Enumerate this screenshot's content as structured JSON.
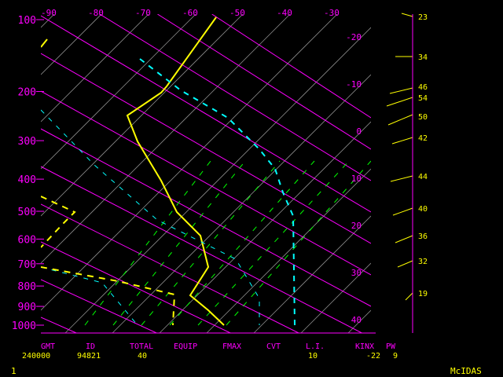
{
  "colors": {
    "background": "#000000",
    "grid": "#ff00ff",
    "isotherm": "#8c8c8c",
    "temperature": "#ffff00",
    "dewpoint": "#00ffff",
    "mixing_ratio": "#00ff00",
    "text_label": "#ff00ff",
    "text_value": "#ffff00"
  },
  "top_axis": [
    "-90",
    "-80",
    "-70",
    "-60",
    "-50",
    "-40",
    "-30"
  ],
  "left_axis": [
    "100",
    "200",
    "300",
    "400",
    "500",
    "600",
    "700",
    "800",
    "900",
    "1000"
  ],
  "right_isotherm_labels": [
    "-20",
    "-10",
    "0",
    "10",
    "20",
    "30",
    "40"
  ],
  "wind_speeds": [
    "23",
    "34",
    "46",
    "54",
    "50",
    "42",
    "44",
    "40",
    "36",
    "32",
    "19"
  ],
  "indices": {
    "headers": [
      "GMT",
      "ID",
      "TOTAL",
      "EQUIP",
      "FMAX",
      "CVT",
      "L.I.",
      "KINX",
      "PW"
    ],
    "values": [
      "240000",
      "94821",
      "40",
      "",
      "",
      "",
      "10",
      "-22",
      "9"
    ]
  },
  "footer": {
    "frame": "1",
    "brand": "McIDAS"
  }
}
